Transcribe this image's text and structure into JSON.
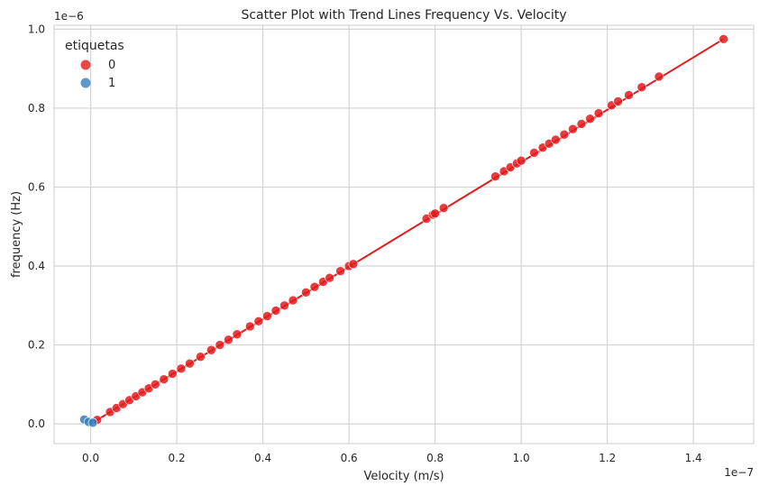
{
  "chart_data": {
    "type": "scatter",
    "title": "Scatter Plot with Trend Lines Frequency Vs. Velocity",
    "xlabel": "Velocity (m/s)",
    "ylabel": "frequency (Hz)",
    "x_offset_label": "1e−7",
    "y_offset_label": "1e−6",
    "x_ticks": [
      "0.0",
      "0.2",
      "0.4",
      "0.6",
      "0.8",
      "1.0",
      "1.2",
      "1.4"
    ],
    "x_tick_values": [
      0.0,
      0.2,
      0.4,
      0.6,
      0.8,
      1.0,
      1.2,
      1.4
    ],
    "y_ticks": [
      "0.0",
      "0.2",
      "0.4",
      "0.6",
      "0.8",
      "1.0"
    ],
    "y_tick_values": [
      0.0,
      0.2,
      0.4,
      0.6,
      0.8,
      1.0
    ],
    "xlim": [
      -0.085,
      1.54
    ],
    "ylim": [
      -0.05,
      1.01
    ],
    "x_scale_note": "x values in units of 1e-7 m/s",
    "y_scale_note": "y values in units of 1e-6 Hz",
    "grid": true,
    "legend": {
      "title": "etiquetas",
      "placement": "top-left",
      "entries": [
        {
          "label": "0",
          "color": "#e41a1c"
        },
        {
          "label": "1",
          "color": "#377eb8"
        }
      ]
    },
    "series": [
      {
        "name": "0",
        "color": "#e41a1c",
        "x": [
          0.015,
          0.045,
          0.06,
          0.075,
          0.09,
          0.105,
          0.12,
          0.135,
          0.15,
          0.17,
          0.19,
          0.21,
          0.23,
          0.255,
          0.28,
          0.3,
          0.32,
          0.34,
          0.37,
          0.39,
          0.41,
          0.43,
          0.45,
          0.47,
          0.5,
          0.52,
          0.54,
          0.555,
          0.58,
          0.6,
          0.61,
          0.78,
          0.795,
          0.8,
          0.82,
          0.94,
          0.96,
          0.975,
          0.99,
          1.0,
          1.03,
          1.05,
          1.065,
          1.08,
          1.1,
          1.12,
          1.14,
          1.16,
          1.18,
          1.21,
          1.225,
          1.25,
          1.28,
          1.32,
          1.47
        ],
        "y": [
          0.01,
          0.03,
          0.04,
          0.05,
          0.06,
          0.07,
          0.08,
          0.09,
          0.1,
          0.113,
          0.127,
          0.14,
          0.153,
          0.17,
          0.187,
          0.2,
          0.213,
          0.227,
          0.247,
          0.26,
          0.273,
          0.287,
          0.3,
          0.313,
          0.333,
          0.347,
          0.36,
          0.37,
          0.387,
          0.4,
          0.405,
          0.52,
          0.53,
          0.533,
          0.547,
          0.627,
          0.64,
          0.65,
          0.66,
          0.667,
          0.687,
          0.7,
          0.71,
          0.72,
          0.733,
          0.747,
          0.76,
          0.773,
          0.787,
          0.807,
          0.817,
          0.833,
          0.853,
          0.88,
          0.975
        ]
      },
      {
        "name": "1",
        "color": "#377eb8",
        "x": [
          -0.015,
          -0.005,
          0.005
        ],
        "y": [
          0.011,
          0.005,
          0.003
        ]
      }
    ],
    "trend_lines": [
      {
        "series": "0",
        "color": "#e41a1c",
        "x": [
          0.0,
          1.47
        ],
        "y": [
          0.0,
          0.975
        ]
      }
    ]
  }
}
